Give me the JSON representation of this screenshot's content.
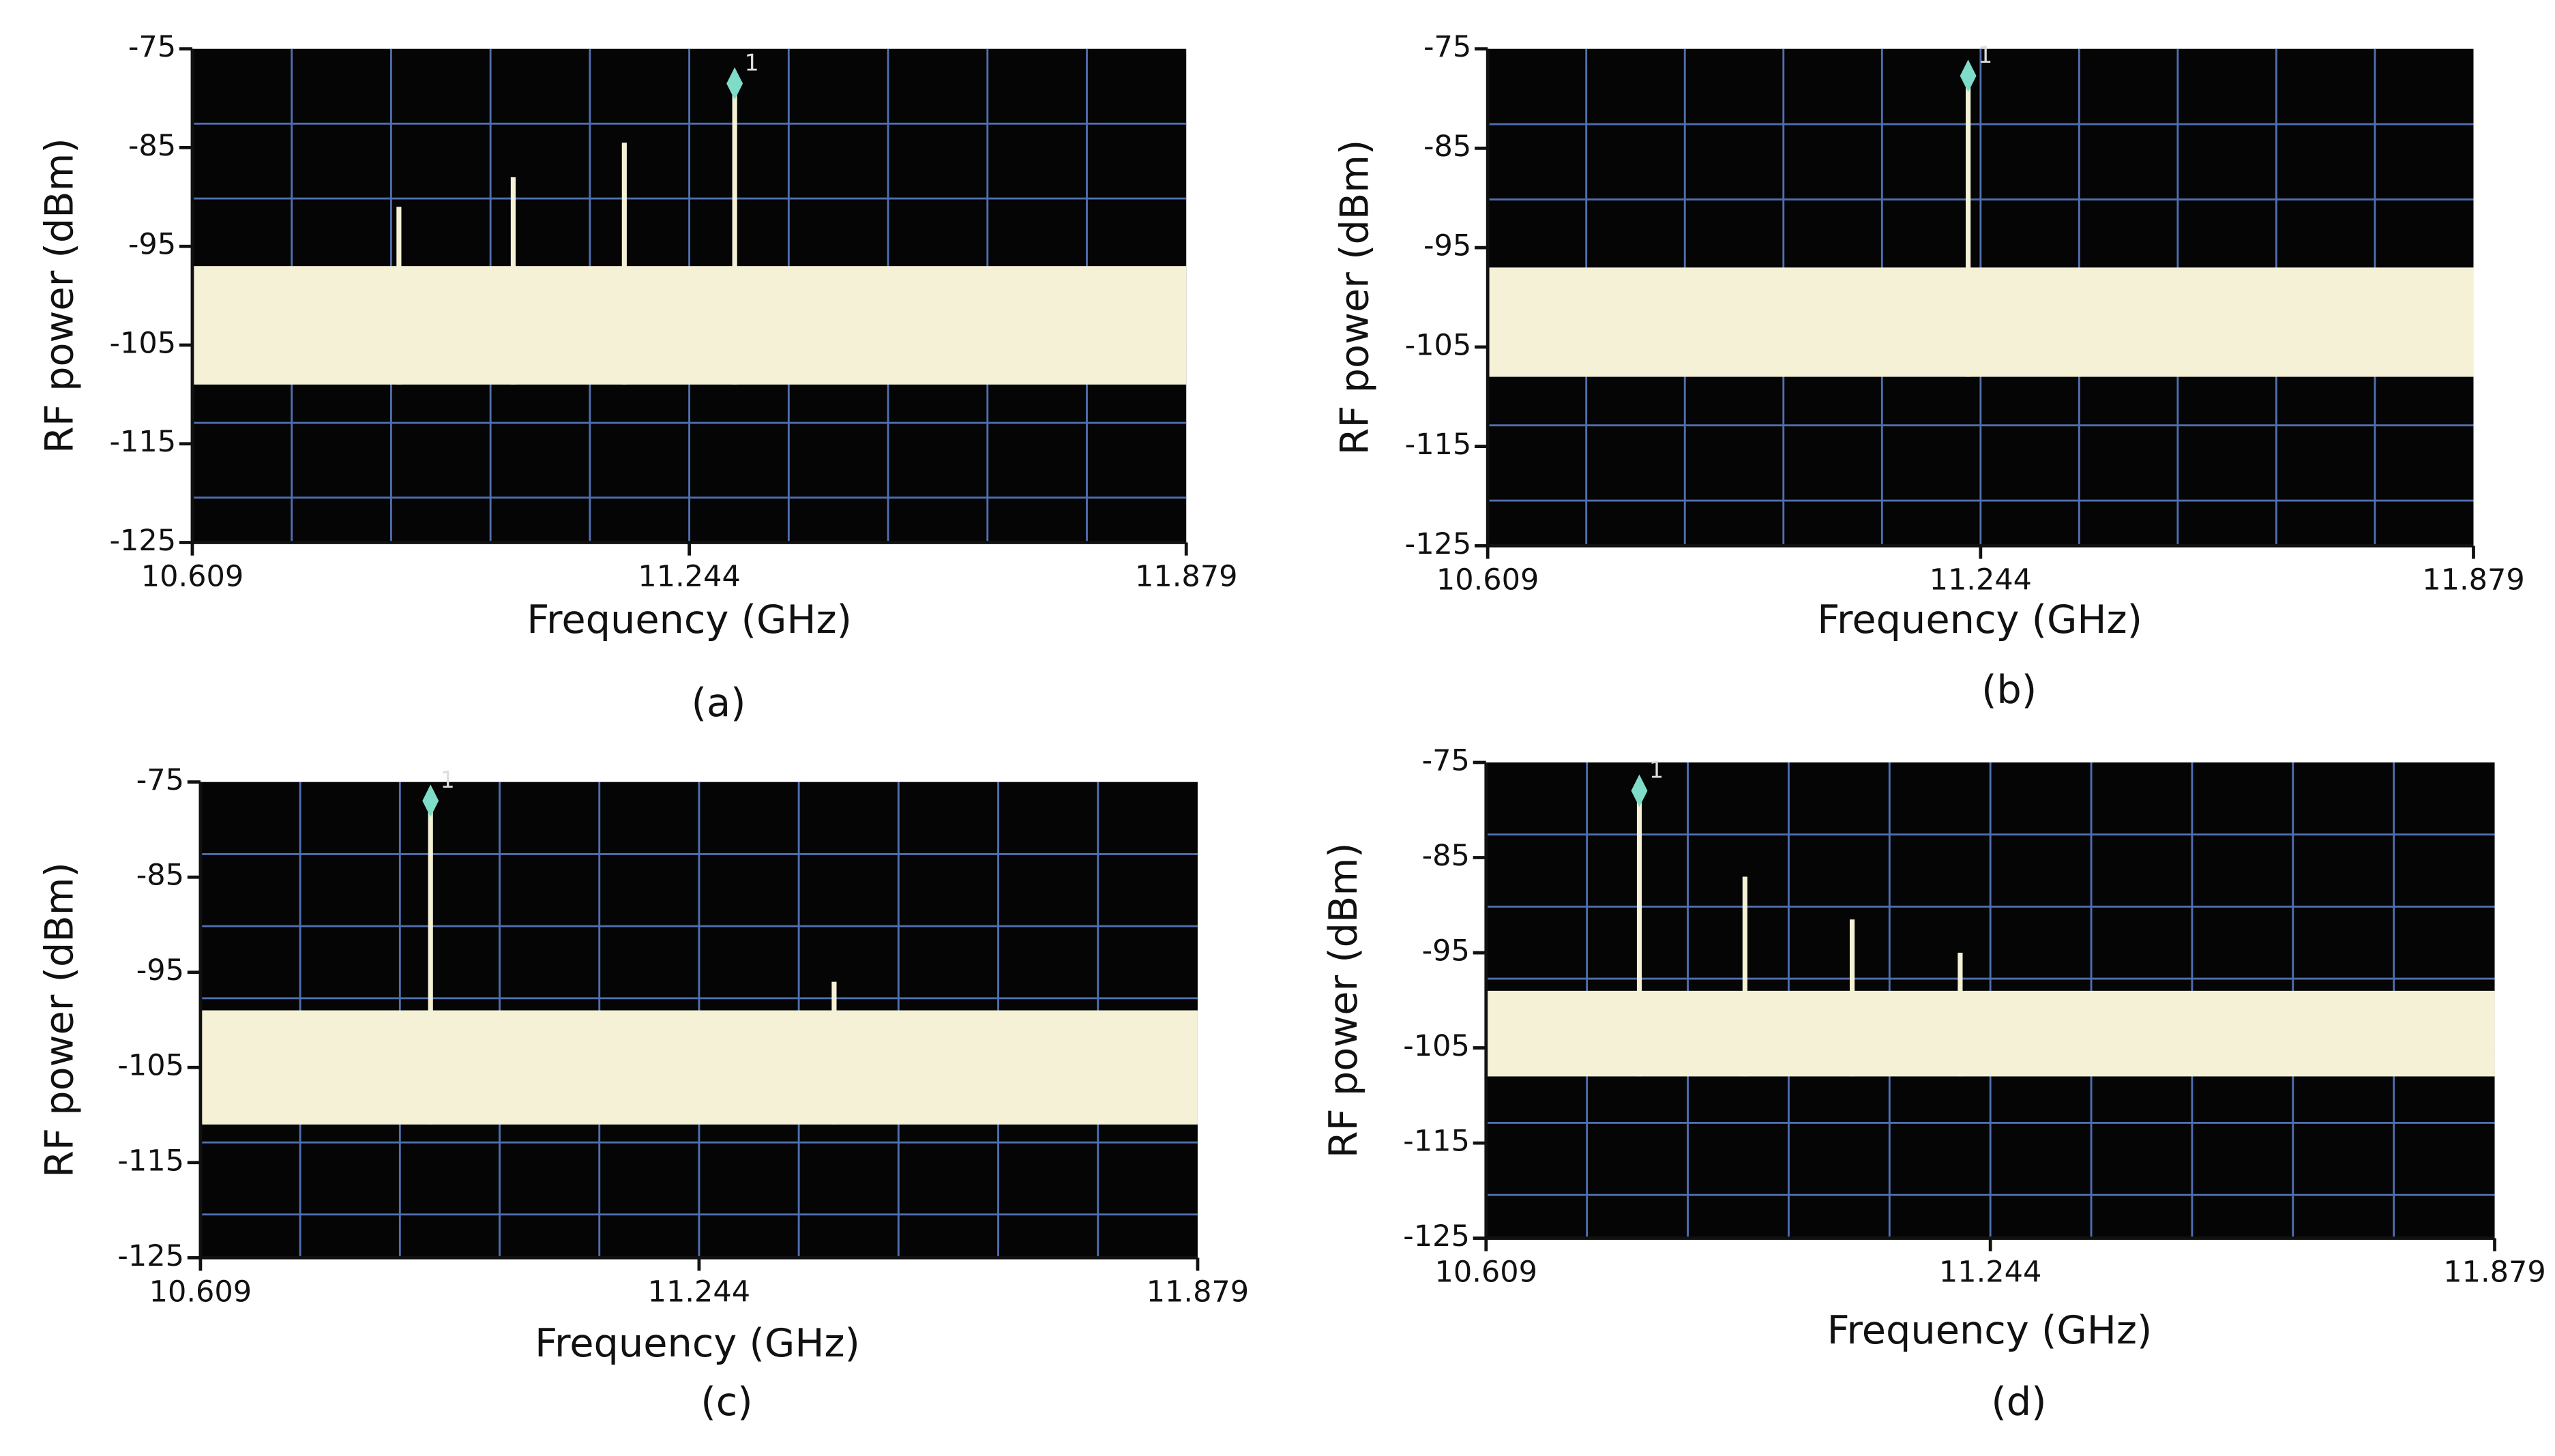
{
  "chart_data": [
    {
      "type": "spectrum",
      "caption": "(a)",
      "xlabel": "Frequency (GHz)",
      "ylabel": "RF power (dBm)",
      "xlim": [
        10.609,
        11.879
      ],
      "xticks": [
        10.609,
        11.244,
        11.879
      ],
      "ylim": [
        -125,
        -75
      ],
      "yticks": [
        -75,
        -85,
        -95,
        -105,
        -115,
        -125
      ],
      "grid": true,
      "noise_floor": [
        -97,
        -109
      ],
      "marker_label": "1",
      "color": "#f4f1d6",
      "peaks": {
        "x": [
          10.873,
          11.019,
          11.161,
          11.302
        ],
        "values": [
          -91,
          -88,
          -84.5,
          -79.5
        ]
      }
    },
    {
      "type": "spectrum",
      "caption": "(b)",
      "xlabel": "Frequency (GHz)",
      "ylabel": "RF power (dBm)",
      "xlim": [
        10.609,
        11.879
      ],
      "xticks": [
        10.609,
        11.244,
        11.879
      ],
      "ylim": [
        -125,
        -75
      ],
      "yticks": [
        -75,
        -85,
        -95,
        -105,
        -115,
        -125
      ],
      "grid": true,
      "noise_floor": [
        -97,
        -108
      ],
      "marker_label": "1",
      "color": "#f4f1d6",
      "peaks": {
        "x": [
          11.228
        ],
        "values": [
          -78.7
        ]
      }
    },
    {
      "type": "spectrum",
      "caption": "(c)",
      "xlabel": "Frequency (GHz)",
      "ylabel": "RF power (dBm)",
      "xlim": [
        10.609,
        11.879
      ],
      "xticks": [
        10.609,
        11.244,
        11.879
      ],
      "ylim": [
        -125,
        -75
      ],
      "yticks": [
        -75,
        -85,
        -95,
        -105,
        -115,
        -125
      ],
      "grid": true,
      "noise_floor": [
        -99,
        -111
      ],
      "marker_label": "1",
      "color": "#f4f1d6",
      "peaks": {
        "x": [
          10.902,
          11.416
        ],
        "values": [
          -78,
          -96
        ]
      }
    },
    {
      "type": "spectrum",
      "caption": "(d)",
      "xlabel": "Frequency (GHz)",
      "ylabel": "RF power (dBm)",
      "xlim": [
        10.609,
        11.879
      ],
      "xticks": [
        10.609,
        11.244,
        11.879
      ],
      "ylim": [
        -125,
        -75
      ],
      "yticks": [
        -75,
        -85,
        -95,
        -105,
        -115,
        -125
      ],
      "grid": true,
      "noise_floor": [
        -99,
        -108
      ],
      "marker_label": "1",
      "color": "#f4f1d6",
      "peaks": {
        "x": [
          10.802,
          10.935,
          11.07,
          11.206
        ],
        "values": [
          -79,
          -87,
          -91.5,
          -95
        ]
      }
    }
  ]
}
